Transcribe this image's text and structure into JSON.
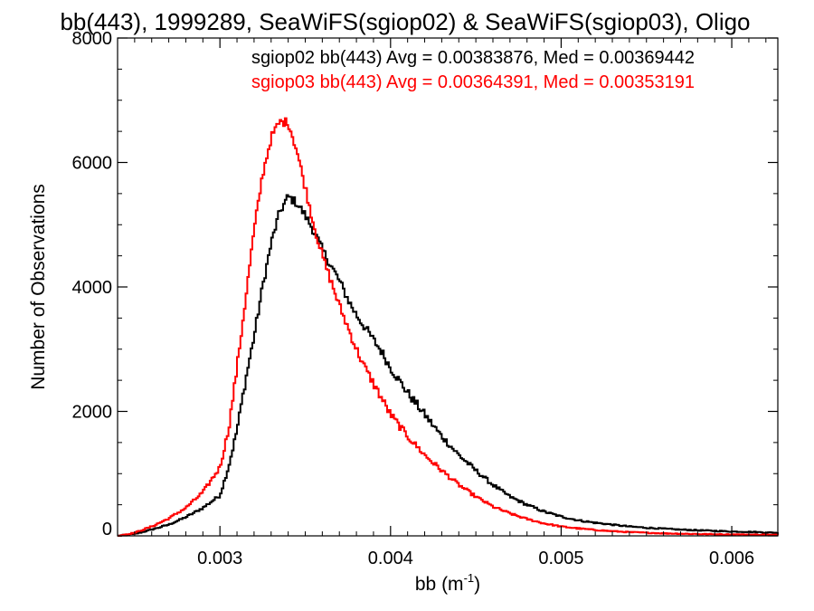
{
  "chart_data": {
    "type": "line",
    "title": "bb(443), 1999289, SeaWiFS(sgiop02) & SeaWiFS(sgiop03), Oligo",
    "xlabel_base": "bb (m",
    "xlabel_exp": "-1",
    "xlabel_close": ")",
    "ylabel": "Number of Observations",
    "xlim": [
      0.0024,
      0.00627
    ],
    "ylim": [
      0,
      8000
    ],
    "xticks": [
      0.003,
      0.004,
      0.005,
      0.006
    ],
    "xtick_labels": [
      "0.003",
      "0.004",
      "0.005",
      "0.006"
    ],
    "yticks": [
      0,
      2000,
      4000,
      6000,
      8000
    ],
    "ytick_labels": [
      "0",
      "2000",
      "4000",
      "6000",
      "8000"
    ],
    "grid": false,
    "legend_position": "top-right",
    "series": [
      {
        "name": "sgiop02",
        "color": "#000000",
        "legend_text": "sgiop02 bb(443) Avg = 0.00383876, Med = 0.00369442",
        "x": [
          0.0024,
          0.0025,
          0.0026,
          0.0027,
          0.0028,
          0.0029,
          0.003,
          0.00305,
          0.0031,
          0.00315,
          0.0032,
          0.00325,
          0.0033,
          0.00335,
          0.0034,
          0.00345,
          0.0035,
          0.00355,
          0.0036,
          0.00365,
          0.0037,
          0.00375,
          0.0038,
          0.00385,
          0.0039,
          0.00395,
          0.004,
          0.0041,
          0.0042,
          0.0043,
          0.0044,
          0.0045,
          0.0046,
          0.0047,
          0.0048,
          0.0049,
          0.005,
          0.0051,
          0.0052,
          0.0053,
          0.0054,
          0.0055,
          0.0056,
          0.0057,
          0.0058,
          0.0059,
          0.006,
          0.0061,
          0.0062,
          0.00627
        ],
        "y": [
          0,
          30,
          100,
          180,
          300,
          450,
          650,
          1100,
          1700,
          2500,
          3200,
          4000,
          4700,
          5200,
          5450,
          5350,
          5150,
          4900,
          4600,
          4350,
          4100,
          3800,
          3550,
          3350,
          3150,
          2950,
          2700,
          2300,
          1950,
          1600,
          1300,
          1050,
          820,
          630,
          500,
          390,
          310,
          250,
          210,
          180,
          150,
          130,
          115,
          100,
          90,
          80,
          70,
          65,
          55,
          50
        ]
      },
      {
        "name": "sgiop03",
        "color": "#ff0000",
        "legend_text": "sgiop03 bb(443) Avg = 0.00364391, Med = 0.00353191",
        "x": [
          0.0024,
          0.0025,
          0.0026,
          0.0027,
          0.0028,
          0.0029,
          0.003,
          0.00305,
          0.0031,
          0.00315,
          0.0032,
          0.00325,
          0.0033,
          0.00335,
          0.0034,
          0.00345,
          0.0035,
          0.00355,
          0.0036,
          0.00365,
          0.0037,
          0.00375,
          0.0038,
          0.00385,
          0.0039,
          0.00395,
          0.004,
          0.0041,
          0.0042,
          0.0043,
          0.0044,
          0.0045,
          0.0046,
          0.0047,
          0.0048,
          0.0049,
          0.005,
          0.0051,
          0.0052,
          0.0053,
          0.0054,
          0.0055,
          0.0056,
          0.0057,
          0.0058,
          0.0059,
          0.006,
          0.0061,
          0.0062,
          0.00627
        ],
        "y": [
          0,
          50,
          150,
          280,
          450,
          700,
          1100,
          1700,
          2700,
          3800,
          4900,
          5800,
          6400,
          6650,
          6650,
          6200,
          5600,
          5000,
          4500,
          4100,
          3700,
          3350,
          3000,
          2700,
          2450,
          2200,
          1950,
          1600,
          1300,
          1050,
          820,
          630,
          470,
          360,
          270,
          200,
          150,
          120,
          95,
          75,
          60,
          50,
          40,
          35,
          30,
          25,
          22,
          20,
          18,
          15
        ]
      }
    ]
  }
}
